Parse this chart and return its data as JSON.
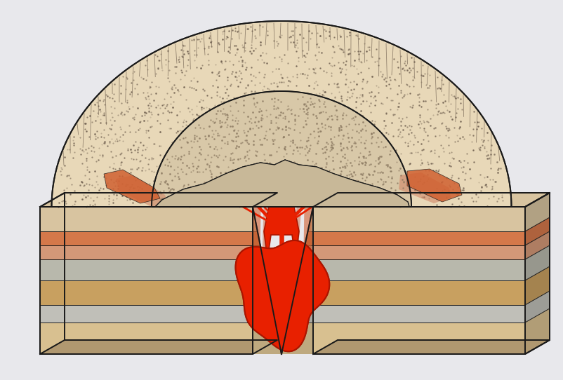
{
  "bg_color": "#e8e8ec",
  "outline_color": "#1a1a1a",
  "lw": 1.4,
  "colors": {
    "sandy_top": "#d8c4a0",
    "orange_thin": "#d4784a",
    "pink_layer": "#d49878",
    "gray_layer1": "#b8b8ac",
    "tan_layer": "#c8a060",
    "gray_layer2": "#c0bfb8",
    "sand_bottom": "#d8c090",
    "beige_bottom2": "#c8b07a",
    "dome_outer": "#e8d8b8",
    "dome_inner": "#d8c8a8",
    "caldera_fill": "#c8b898",
    "inner_rubble": "#b8a880",
    "inner_dark": "#9a8860",
    "red_magma": "#e82000",
    "dark_red": "#aa1500",
    "orange_dike": "#d06030",
    "pink_dike": "#d08060",
    "dark_outline": "#2a2010",
    "side_dark": "#b09870"
  }
}
